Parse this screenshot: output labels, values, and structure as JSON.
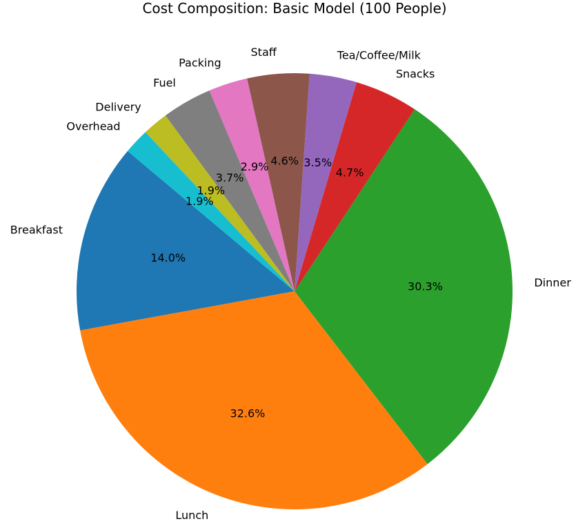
{
  "chart_data": {
    "type": "pie",
    "title": "Cost Composition: Basic Model (100 People)",
    "start_angle": 140,
    "direction": "counterclockwise",
    "slices": [
      {
        "label": "Breakfast",
        "value": 14.0,
        "pct_text": "14.0%",
        "color": "#1f77b4"
      },
      {
        "label": "Lunch",
        "value": 32.6,
        "pct_text": "32.6%",
        "color": "#ff7f0e"
      },
      {
        "label": "Dinner",
        "value": 30.3,
        "pct_text": "30.3%",
        "color": "#2ca02c"
      },
      {
        "label": "Snacks",
        "value": 4.7,
        "pct_text": "4.7%",
        "color": "#d62728"
      },
      {
        "label": "Tea/Coffee/Milk",
        "value": 3.5,
        "pct_text": "3.5%",
        "color": "#9467bd"
      },
      {
        "label": "Staff",
        "value": 4.6,
        "pct_text": "4.6%",
        "color": "#8c564b"
      },
      {
        "label": "Packing",
        "value": 2.9,
        "pct_text": "2.9%",
        "color": "#e377c2"
      },
      {
        "label": "Fuel",
        "value": 3.7,
        "pct_text": "3.7%",
        "color": "#7f7f7f"
      },
      {
        "label": "Delivery",
        "value": 1.9,
        "pct_text": "1.9%",
        "color": "#bcbd22"
      },
      {
        "label": "Overhead",
        "value": 1.9,
        "pct_text": "1.9%",
        "color": "#17becf"
      }
    ]
  }
}
